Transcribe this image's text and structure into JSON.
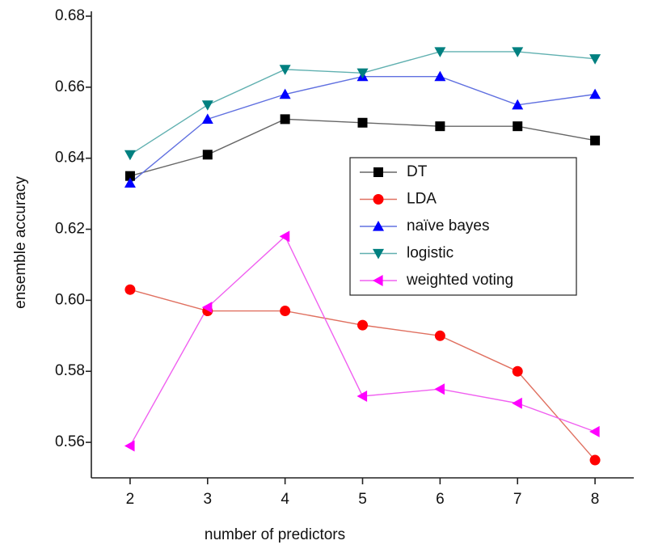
{
  "chart_data": {
    "type": "line",
    "x_label": "number of predictors",
    "y_label": "ensemble accuracy",
    "x": [
      2,
      3,
      4,
      5,
      6,
      7,
      8
    ],
    "xlim": [
      1.5,
      8.5
    ],
    "xticks": [
      2,
      3,
      4,
      5,
      6,
      7,
      8
    ],
    "ylim": [
      0.55,
      0.68
    ],
    "yticks": [
      0.56,
      0.58,
      {
        "value": 0.6,
        "label": "0.60"
      },
      0.62,
      0.64,
      0.66,
      0.68
    ],
    "legend": "upper right",
    "series": [
      {
        "name": "DT",
        "color": "#000000",
        "line_color": "#666666",
        "marker": "square",
        "values": [
          0.635,
          0.641,
          0.651,
          0.65,
          0.649,
          0.649,
          0.645
        ]
      },
      {
        "name": "LDA",
        "color": "#ff0000",
        "line_color": "#e07060",
        "marker": "circle",
        "values": [
          0.603,
          0.597,
          0.597,
          0.593,
          0.59,
          0.58,
          0.555
        ]
      },
      {
        "name": "naïve bayes",
        "color": "#0000ff",
        "line_color": "#6070e0",
        "marker": "triangle-up",
        "values": [
          0.633,
          0.651,
          0.658,
          0.663,
          0.663,
          0.655,
          0.658
        ]
      },
      {
        "name": "logistic",
        "color": "#008080",
        "line_color": "#60b0b0",
        "marker": "triangle-down",
        "values": [
          0.641,
          0.655,
          0.665,
          0.664,
          0.67,
          0.67,
          0.668
        ]
      },
      {
        "name": "weighted voting",
        "color": "#ff00ff",
        "line_color": "#f060f0",
        "marker": "triangle-left",
        "values": [
          0.559,
          0.598,
          0.618,
          0.573,
          0.575,
          0.571,
          0.563
        ]
      }
    ]
  }
}
